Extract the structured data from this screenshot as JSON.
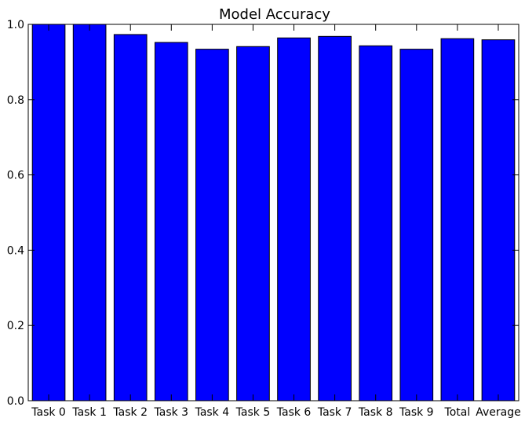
{
  "chart_data": {
    "type": "bar",
    "title": "Model Accuracy",
    "xlabel": "",
    "ylabel": "",
    "categories": [
      "Task 0",
      "Task 1",
      "Task 2",
      "Task 3",
      "Task 4",
      "Task 5",
      "Task 6",
      "Task 7",
      "Task 8",
      "Task 9",
      "Total",
      "Average"
    ],
    "values": [
      1.0,
      1.0,
      0.973,
      0.952,
      0.934,
      0.941,
      0.964,
      0.968,
      0.943,
      0.934,
      0.962,
      0.959
    ],
    "ylim": [
      0.0,
      1.0
    ],
    "yticks": [
      "0.0",
      "0.2",
      "0.4",
      "0.6",
      "0.8",
      "1.0"
    ],
    "grid": false,
    "bar_color": "#0000ff",
    "edge_color": "#000000"
  }
}
